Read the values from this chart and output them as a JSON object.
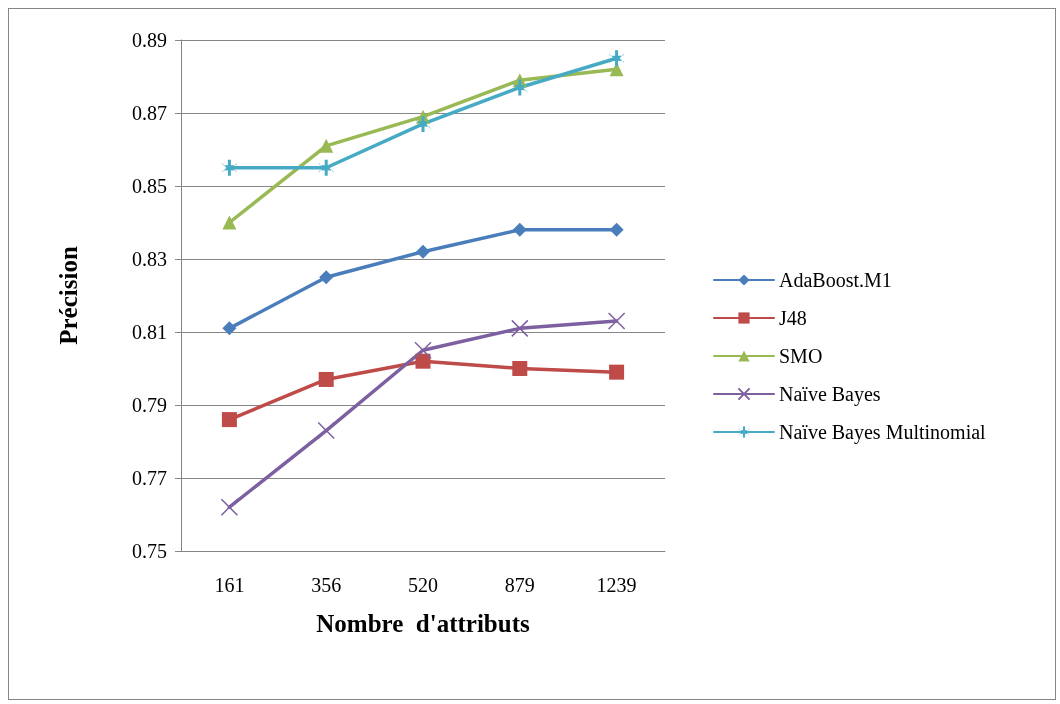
{
  "chart_data": {
    "type": "line",
    "xlabel": "Nombre  d'attributs",
    "ylabel": "Précision",
    "categories": [
      "161",
      "356",
      "520",
      "879",
      "1239"
    ],
    "ylim": [
      0.75,
      0.89
    ],
    "yticks": [
      0.75,
      0.77,
      0.79,
      0.81,
      0.83,
      0.85,
      0.87,
      0.89
    ],
    "grid": "y",
    "legend": "right",
    "line_style": "solid",
    "series": [
      {
        "name": "AdaBoost.M1",
        "color": "#4a7ebb",
        "marker": "diamond",
        "values": [
          0.811,
          0.825,
          0.832,
          0.838,
          0.838
        ]
      },
      {
        "name": "J48",
        "color": "#be4b48",
        "marker": "square",
        "values": [
          0.786,
          0.797,
          0.802,
          0.8,
          0.799
        ]
      },
      {
        "name": "SMO",
        "color": "#98b954",
        "marker": "triangle",
        "values": [
          0.84,
          0.861,
          0.869,
          0.879,
          0.882
        ]
      },
      {
        "name": "Naïve Bayes",
        "color": "#7d60a0",
        "marker": "cross",
        "values": [
          0.762,
          0.783,
          0.805,
          0.811,
          0.813
        ]
      },
      {
        "name": "Naïve Bayes Multinomial",
        "color": "#46aac5",
        "marker": "star",
        "values": [
          0.855,
          0.855,
          0.867,
          0.877,
          0.885
        ]
      }
    ]
  }
}
